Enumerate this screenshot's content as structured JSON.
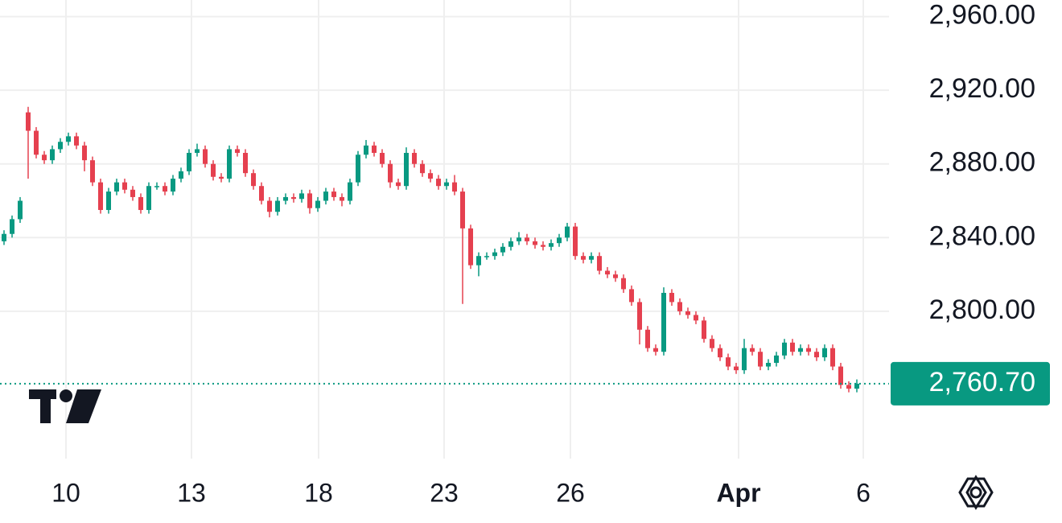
{
  "chart_data": {
    "type": "candlestick",
    "up_color": "#089981",
    "down_color": "#e5404f",
    "xlim": [
      -0.5,
      110
    ],
    "ylim": [
      2720,
      2969
    ],
    "xticks": [
      {
        "value": 7.7,
        "label": "10"
      },
      {
        "value": 23.3,
        "label": "13"
      },
      {
        "value": 39.1,
        "label": "18"
      },
      {
        "value": 54.7,
        "label": "23"
      },
      {
        "value": 70.4,
        "label": "26"
      },
      {
        "value": 91.3,
        "label": "Apr",
        "bold": true
      },
      {
        "value": 106.8,
        "label": "6"
      }
    ],
    "yticks": [
      {
        "value": 2800,
        "label": "2,800.00"
      },
      {
        "value": 2840,
        "label": "2,840.00"
      },
      {
        "value": 2880,
        "label": "2,880.00"
      },
      {
        "value": 2920,
        "label": "2,920.00"
      },
      {
        "value": 2960,
        "label": "2,960.00"
      }
    ],
    "grid": true,
    "last_price": {
      "value": 2760.7,
      "label": "2,760.70"
    },
    "open": [
      2838,
      2842,
      2850,
      2908,
      2898,
      2885,
      2882,
      2888,
      2892,
      2895,
      2890,
      2882,
      2870,
      2855,
      2865,
      2870,
      2866,
      2862,
      2855,
      2868,
      2868,
      2865,
      2872,
      2876,
      2886,
      2888,
      2880,
      2873,
      2872,
      2888,
      2886,
      2875,
      2868,
      2860,
      2854,
      2860,
      2862,
      2861,
      2864,
      2856,
      2860,
      2865,
      2862,
      2860,
      2870,
      2885,
      2890,
      2886,
      2880,
      2870,
      2868,
      2886,
      2880,
      2875,
      2872,
      2868,
      2870,
      2865,
      2845,
      2825,
      2830,
      2830,
      2832,
      2835,
      2838,
      2840,
      2838,
      2836,
      2835,
      2837,
      2840,
      2846,
      2830,
      2828,
      2830,
      2822,
      2820,
      2818,
      2812,
      2805,
      2790,
      2780,
      2778,
      2810,
      2805,
      2800,
      2798,
      2795,
      2785,
      2780,
      2775,
      2770,
      2768,
      2780,
      2778,
      2770,
      2772,
      2776,
      2783,
      2778,
      2780,
      2778,
      2775,
      2780,
      2770,
      2760,
      2758
    ],
    "high": [
      2844,
      2852,
      2862,
      2911,
      2900,
      2887,
      2890,
      2894,
      2897,
      2897,
      2892,
      2884,
      2872,
      2867,
      2872,
      2872,
      2868,
      2864,
      2870,
      2870,
      2870,
      2874,
      2878,
      2888,
      2891,
      2890,
      2882,
      2875,
      2890,
      2890,
      2888,
      2877,
      2870,
      2862,
      2862,
      2864,
      2864,
      2866,
      2866,
      2862,
      2867,
      2867,
      2864,
      2872,
      2887,
      2893,
      2892,
      2888,
      2882,
      2872,
      2889,
      2888,
      2882,
      2877,
      2874,
      2872,
      2874,
      2867,
      2847,
      2832,
      2832,
      2834,
      2837,
      2840,
      2843,
      2842,
      2840,
      2838,
      2839,
      2842,
      2848,
      2848,
      2832,
      2832,
      2832,
      2824,
      2822,
      2820,
      2814,
      2807,
      2792,
      2782,
      2813,
      2812,
      2807,
      2802,
      2800,
      2797,
      2787,
      2782,
      2777,
      2772,
      2785,
      2782,
      2780,
      2774,
      2778,
      2785,
      2785,
      2782,
      2782,
      2780,
      2782,
      2782,
      2772,
      2762,
      2763
    ],
    "low": [
      2836,
      2840,
      2848,
      2872,
      2883,
      2880,
      2880,
      2886,
      2890,
      2888,
      2876,
      2868,
      2853,
      2853,
      2863,
      2864,
      2860,
      2853,
      2853,
      2866,
      2863,
      2863,
      2870,
      2874,
      2884,
      2878,
      2871,
      2870,
      2870,
      2884,
      2873,
      2866,
      2858,
      2851,
      2852,
      2858,
      2859,
      2859,
      2853,
      2854,
      2858,
      2860,
      2857,
      2858,
      2868,
      2883,
      2884,
      2878,
      2867,
      2866,
      2866,
      2878,
      2873,
      2870,
      2866,
      2866,
      2863,
      2804,
      2823,
      2819,
      2828,
      2828,
      2830,
      2833,
      2836,
      2836,
      2834,
      2833,
      2833,
      2835,
      2838,
      2828,
      2826,
      2826,
      2820,
      2818,
      2816,
      2810,
      2803,
      2782,
      2778,
      2776,
      2776,
      2803,
      2798,
      2796,
      2793,
      2783,
      2778,
      2773,
      2768,
      2766,
      2766,
      2776,
      2768,
      2768,
      2770,
      2774,
      2776,
      2776,
      2776,
      2773,
      2773,
      2768,
      2758,
      2756,
      2756
    ],
    "close": [
      2842,
      2850,
      2860,
      2898,
      2885,
      2882,
      2888,
      2892,
      2895,
      2890,
      2882,
      2870,
      2855,
      2865,
      2870,
      2866,
      2862,
      2855,
      2868,
      2868,
      2865,
      2872,
      2876,
      2886,
      2888,
      2880,
      2873,
      2872,
      2888,
      2886,
      2875,
      2868,
      2860,
      2854,
      2860,
      2862,
      2861,
      2864,
      2856,
      2860,
      2865,
      2862,
      2860,
      2870,
      2885,
      2890,
      2886,
      2880,
      2870,
      2868,
      2886,
      2880,
      2875,
      2872,
      2868,
      2870,
      2865,
      2845,
      2825,
      2830,
      2830,
      2832,
      2835,
      2838,
      2840,
      2838,
      2836,
      2835,
      2837,
      2840,
      2846,
      2830,
      2828,
      2830,
      2822,
      2820,
      2818,
      2812,
      2805,
      2790,
      2780,
      2778,
      2810,
      2805,
      2800,
      2798,
      2795,
      2785,
      2780,
      2775,
      2770,
      2768,
      2780,
      2778,
      2770,
      2772,
      2776,
      2783,
      2778,
      2780,
      2778,
      2775,
      2780,
      2770,
      2760,
      2758,
      2760.7
    ]
  }
}
